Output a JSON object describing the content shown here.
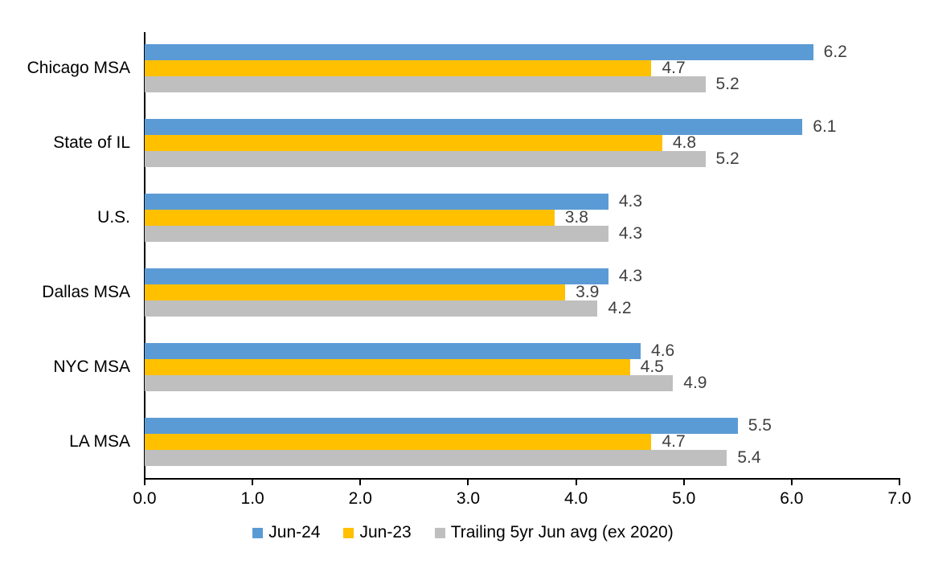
{
  "chart_data": {
    "type": "bar",
    "orientation": "horizontal",
    "categories": [
      "Chicago MSA",
      "State of IL",
      "U.S.",
      "Dallas MSA",
      "NYC MSA",
      "LA MSA"
    ],
    "series": [
      {
        "name": "Jun-24",
        "color": "#5B9BD5",
        "values": [
          6.2,
          6.1,
          4.3,
          4.3,
          4.6,
          5.5
        ]
      },
      {
        "name": "Jun-23",
        "color": "#FFC000",
        "values": [
          4.7,
          4.8,
          3.8,
          3.9,
          4.5,
          4.7
        ]
      },
      {
        "name": "Trailing 5yr Jun avg (ex 2020)",
        "color": "#BFBFBF",
        "values": [
          5.2,
          5.2,
          4.3,
          4.2,
          4.9,
          5.4
        ]
      }
    ],
    "xlim": [
      0,
      7
    ],
    "x_ticks": [
      "0.0",
      "1.0",
      "2.0",
      "3.0",
      "4.0",
      "5.0",
      "6.0",
      "7.0"
    ],
    "value_label_decimals": 1,
    "value_label_color": "#404040",
    "axis_color": "#000000",
    "grid": false,
    "legend_position": "bottom-center",
    "title": "",
    "xlabel": "",
    "ylabel": ""
  },
  "layout_note": "grouped horizontal bar chart, data labels at bar ends"
}
